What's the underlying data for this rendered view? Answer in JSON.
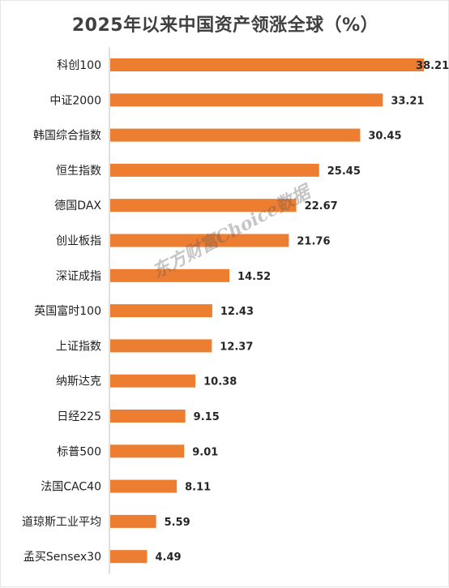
{
  "chart_data": {
    "type": "bar",
    "orientation": "horizontal",
    "title": "2025年以来中国资产领涨全球（%）",
    "categories": [
      "科创100",
      "中证2000",
      "韩国综合指数",
      "恒生指数",
      "德国DAX",
      "创业板指",
      "深证成指",
      "英国富时100",
      "上证指数",
      "纳斯达克",
      "日经225",
      "标普500",
      "法国CAC40",
      "道琼斯工业平均",
      "孟买Sensex30"
    ],
    "values": [
      38.21,
      33.21,
      30.45,
      25.45,
      22.67,
      21.76,
      14.52,
      12.43,
      12.37,
      10.38,
      9.15,
      9.01,
      8.11,
      5.59,
      4.49
    ],
    "value_labels": [
      "38.21",
      "33.21",
      "30.45",
      "25.45",
      "22.67",
      "21.76",
      "14.52",
      "12.43",
      "12.37",
      "10.38",
      "9.15",
      "9.01",
      "8.11",
      "5.59",
      "4.49"
    ],
    "xlim": [
      0,
      38.21
    ],
    "bar_color": "#ED7D31",
    "axis_color": "#bfbfbf",
    "grid": false,
    "legend": false
  },
  "watermark": "东方财富Choice数据"
}
